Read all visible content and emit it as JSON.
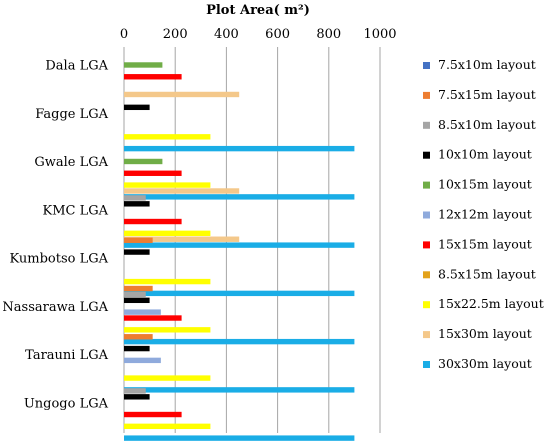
{
  "chart_data": {
    "type": "bar",
    "orientation": "horizontal",
    "title": "Plot Area( m²)",
    "xlabel": "Plot Area( m²)",
    "ylabel": "",
    "xlim": [
      0,
      1000
    ],
    "x_ticks": [
      "0",
      "200",
      "400",
      "600",
      "800",
      "1000"
    ],
    "grid": "vertical",
    "legend_position": "right",
    "categories": [
      "Dala LGA",
      "Fagge LGA",
      "Gwale  LGA",
      "KMC LGA",
      "Kumbotso LGA",
      "Nassarawa LGA",
      "Tarauni LGA",
      "Ungogo LGA"
    ],
    "series": [
      {
        "name": "7.5x10m layout",
        "color": "#4472C4",
        "values": [
          null,
          null,
          null,
          null,
          null,
          null,
          null,
          null
        ]
      },
      {
        "name": "7.5x15m layout",
        "color": "#ED7D31",
        "values": [
          null,
          null,
          null,
          null,
          112,
          112,
          112,
          null
        ]
      },
      {
        "name": "8.5x10m layout",
        "color": "#A5A5A5",
        "values": [
          null,
          null,
          null,
          85,
          null,
          85,
          null,
          85
        ]
      },
      {
        "name": "10x10m layout",
        "color": "#000000",
        "values": [
          null,
          100,
          null,
          100,
          100,
          100,
          100,
          100
        ]
      },
      {
        "name": "10x15m layout",
        "color": "#70AD47",
        "values": [
          150,
          null,
          150,
          null,
          null,
          null,
          null,
          null
        ]
      },
      {
        "name": "12x12m layout",
        "color": "#8FAADC",
        "values": [
          null,
          null,
          null,
          null,
          null,
          144,
          144,
          null
        ]
      },
      {
        "name": "15x15m layout",
        "color": "#FF0000",
        "values": [
          225,
          null,
          225,
          225,
          null,
          225,
          null,
          225
        ]
      },
      {
        "name": "8.5x15m layout",
        "color": "#E3A21A",
        "values": [
          null,
          null,
          null,
          null,
          null,
          null,
          null,
          null
        ]
      },
      {
        "name": "15x22.5m layout",
        "color": "#FFFF00",
        "values": [
          null,
          337.5,
          337.5,
          337.5,
          337.5,
          337.5,
          337.5,
          337.5
        ]
      },
      {
        "name": "15x30m layout",
        "color": "#F4C88A",
        "values": [
          450,
          null,
          450,
          450,
          null,
          null,
          null,
          null
        ]
      },
      {
        "name": "30x30m layout",
        "color": "#1AADE6",
        "values": [
          null,
          900,
          900,
          900,
          900,
          900,
          900,
          900
        ]
      }
    ]
  }
}
